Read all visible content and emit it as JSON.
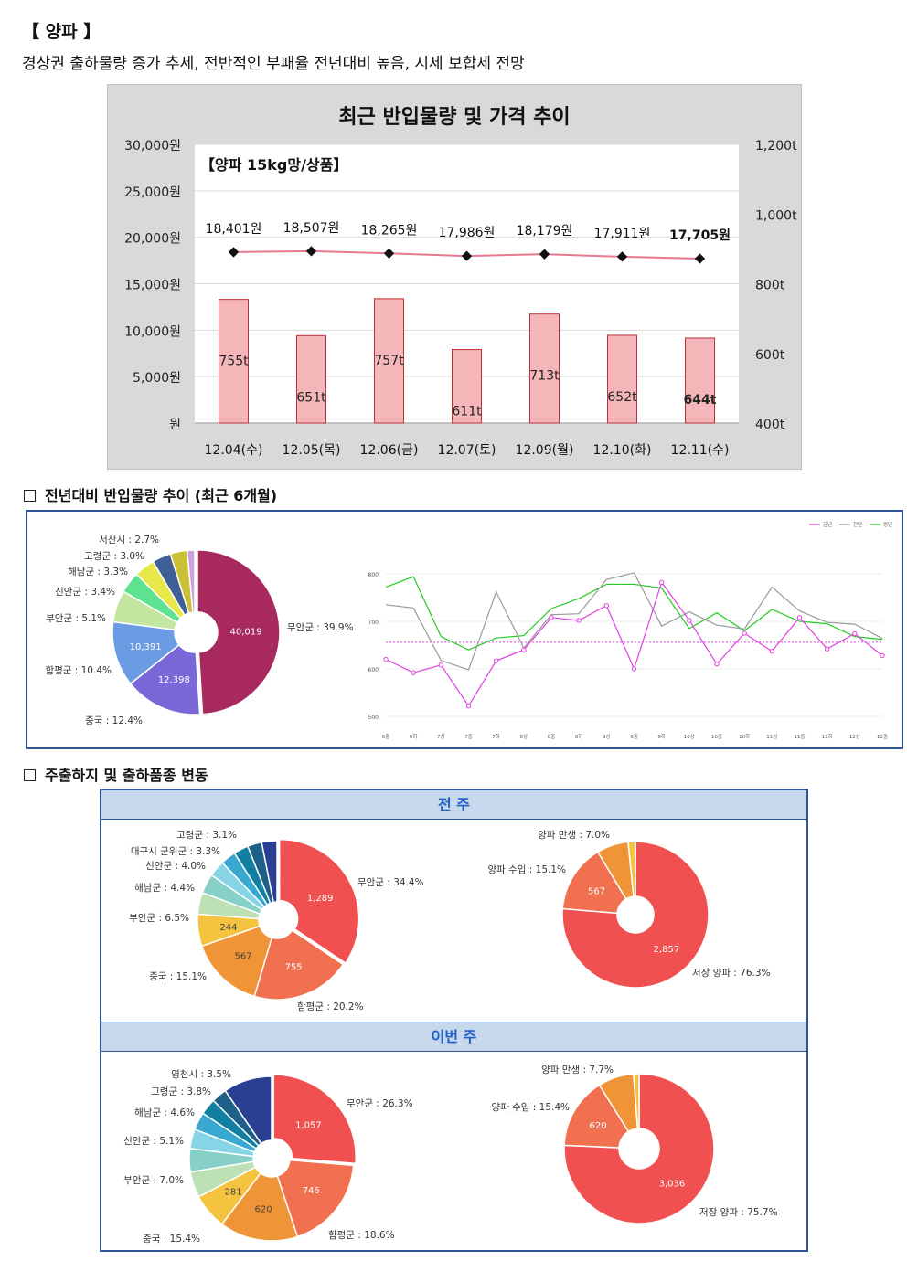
{
  "header": {
    "title": "【 양파 】",
    "summary": "경상권 출하물량 증가 추세, 전반적인 부패율 전년대비 높음, 시세 보합세 전망"
  },
  "sections": {
    "yoy": "전년대비 반입물량 추이 (최근 6개월)",
    "origin": "주출하지 및 출하품종 변동",
    "prev_week": "전 주",
    "this_week": "이번 주"
  },
  "chart_data": [
    {
      "type": "bar",
      "title": "최근 반입물량 및 가격 추이",
      "subtitle": "【양파 15kg망/상품】",
      "categories": [
        "12.04(수)",
        "12.05(목)",
        "12.06(금)",
        "12.07(토)",
        "12.09(월)",
        "12.10(화)",
        "12.11(수)"
      ],
      "series": [
        {
          "values": [
            755,
            651,
            757,
            611,
            713,
            652,
            644
          ],
          "labels": [
            "755t",
            "651t",
            "757t",
            "611t",
            "713t",
            "652t",
            "644t"
          ],
          "axis": "right",
          "color": "#f4b6b9"
        },
        {
          "values": [
            18401,
            18507,
            18265,
            17986,
            18179,
            17911,
            17705
          ],
          "labels": [
            "18,401원",
            "18,507원",
            "18,265원",
            "17,986원",
            "18,179원",
            "17,911원",
            "17,705원"
          ],
          "axis": "left",
          "color": "#e77a8e"
        }
      ],
      "ylim": [
        0,
        30000
      ],
      "y_ticks": [
        "원",
        "5,000원",
        "10,000원",
        "15,000원",
        "20,000원",
        "25,000원",
        "30,000원"
      ],
      "y2lim": [
        400,
        1200
      ],
      "y2_ticks": [
        "400t",
        "600t",
        "800t",
        "1,000t",
        "1,200t"
      ]
    },
    {
      "type": "pie",
      "values": [
        40019,
        12398,
        10391,
        5.1,
        3.4,
        3.3,
        3.0,
        2.7,
        1.2
      ],
      "percent": [
        39.9,
        12.4,
        10.4,
        5.1,
        3.4,
        3.3,
        3.0,
        2.7,
        1.2
      ],
      "inner_labels": [
        "40,019",
        "12,398",
        "10,391",
        "",
        "",
        "",
        "",
        "",
        ""
      ],
      "outer_labels": [
        "무안군 : 39.9%",
        "중국 : 12.4%",
        "함평군 : 10.4%",
        "부안군 : 5.1%",
        "신안군 : 3.4%",
        "해남군 : 3.3%",
        "고령군 : 3.0%",
        "서산시 : 2.7%",
        ""
      ],
      "colors": [
        "#a8295e",
        "#7b68d8",
        "#6b9be3",
        "#c3e6a0",
        "#5ee28f",
        "#e8e84a",
        "#3f5f95",
        "#c9c035",
        "#cf9fe0"
      ]
    },
    {
      "type": "line",
      "legend": [
        "금년",
        "전년",
        "평년"
      ],
      "x": [
        "6중",
        "6하",
        "7상",
        "7중",
        "7하",
        "8상",
        "8중",
        "8하",
        "9상",
        "9중",
        "9하",
        "10상",
        "10중",
        "10하",
        "11상",
        "11중",
        "11하",
        "12상",
        "12중"
      ],
      "ylim": [
        500,
        800
      ],
      "y_ticks": [
        "500",
        "600",
        "700",
        "800"
      ],
      "series": [
        {
          "name": "금년",
          "color": "#e040e0",
          "values": [
            620,
            592,
            608,
            522,
            617,
            640,
            708,
            702,
            733,
            600,
            782,
            702,
            610,
            675,
            637,
            708,
            642,
            674,
            628
          ]
        },
        {
          "name": "전년",
          "color": "#9a9a9a",
          "values": [
            735,
            728,
            618,
            598,
            762,
            644,
            714,
            716,
            788,
            802,
            690,
            720,
            692,
            684,
            772,
            722,
            698,
            694,
            664
          ]
        },
        {
          "name": "평년",
          "color": "#22cc22",
          "values": [
            772,
            794,
            668,
            640,
            665,
            670,
            727,
            748,
            778,
            778,
            770,
            685,
            718,
            680,
            725,
            700,
            695,
            668,
            662
          ]
        }
      ],
      "average_line": 656
    },
    {
      "type": "pie",
      "label": "전 주 · 산지",
      "percent": [
        34.4,
        20.2,
        15.1,
        6.5,
        4.4,
        4.0,
        3.3,
        3.1,
        3.0,
        2.9,
        3.1
      ],
      "inner_labels": [
        "1,289",
        "755",
        "567",
        "244",
        "",
        "",
        "",
        "",
        "",
        "",
        ""
      ],
      "outer_labels": [
        "무안군 : 34.4%",
        "함평군 : 20.2%",
        "중국 : 15.1%",
        "부안군 : 6.5%",
        "해남군 : 4.4%",
        "신안군 : 4.0%",
        "대구시 군위군 : 3.3%",
        "고령군 : 3.1%",
        "",
        "",
        ""
      ],
      "colors": [
        "#f05050",
        "#f07050",
        "#f09438",
        "#f4c440",
        "#bde0b4",
        "#86d0c8",
        "#86d4e6",
        "#38a8d0",
        "#127ea0",
        "#1e6088",
        "#2a3f92"
      ]
    },
    {
      "type": "pie",
      "label": "전 주 · 품종",
      "percent": [
        76.3,
        15.1,
        7.0,
        1.6
      ],
      "inner_labels": [
        "2,857",
        "567",
        "",
        ""
      ],
      "outer_labels": [
        "저장 양파 : 76.3%",
        "양파 수입 : 15.1%",
        "양파 만생 : 7.0%",
        ""
      ],
      "colors": [
        "#f05050",
        "#f07050",
        "#f09438",
        "#f4c440"
      ]
    },
    {
      "type": "pie",
      "label": "이번 주 · 산지",
      "percent": [
        26.3,
        18.6,
        15.4,
        7.0,
        5.1,
        4.6,
        3.8,
        3.5,
        3.2,
        3.0,
        9.5
      ],
      "inner_labels": [
        "1,057",
        "746",
        "620",
        "281",
        "",
        "",
        "",
        "",
        "",
        "",
        ""
      ],
      "outer_labels": [
        "무안군 : 26.3%",
        "함평군 : 18.6%",
        "중국 : 15.4%",
        "부안군 : 7.0%",
        "신안군 : 5.1%",
        "해남군 : 4.6%",
        "고령군 : 3.8%",
        "영천시 : 3.5%",
        "",
        "",
        ""
      ],
      "colors": [
        "#f05050",
        "#f07050",
        "#f09438",
        "#f4c440",
        "#bde0b4",
        "#86d0c8",
        "#86d4e6",
        "#38a8d0",
        "#127ea0",
        "#1e6088",
        "#2a3f92"
      ]
    },
    {
      "type": "pie",
      "label": "이번 주 · 품종",
      "percent": [
        75.7,
        15.4,
        7.7,
        1.2
      ],
      "inner_labels": [
        "3,036",
        "620",
        "",
        ""
      ],
      "outer_labels": [
        "저장 양파 : 75.7%",
        "양파 수입 : 15.4%",
        "양파 만생 : 7.7%",
        ""
      ],
      "colors": [
        "#f05050",
        "#f07050",
        "#f09438",
        "#f4c440"
      ]
    }
  ]
}
